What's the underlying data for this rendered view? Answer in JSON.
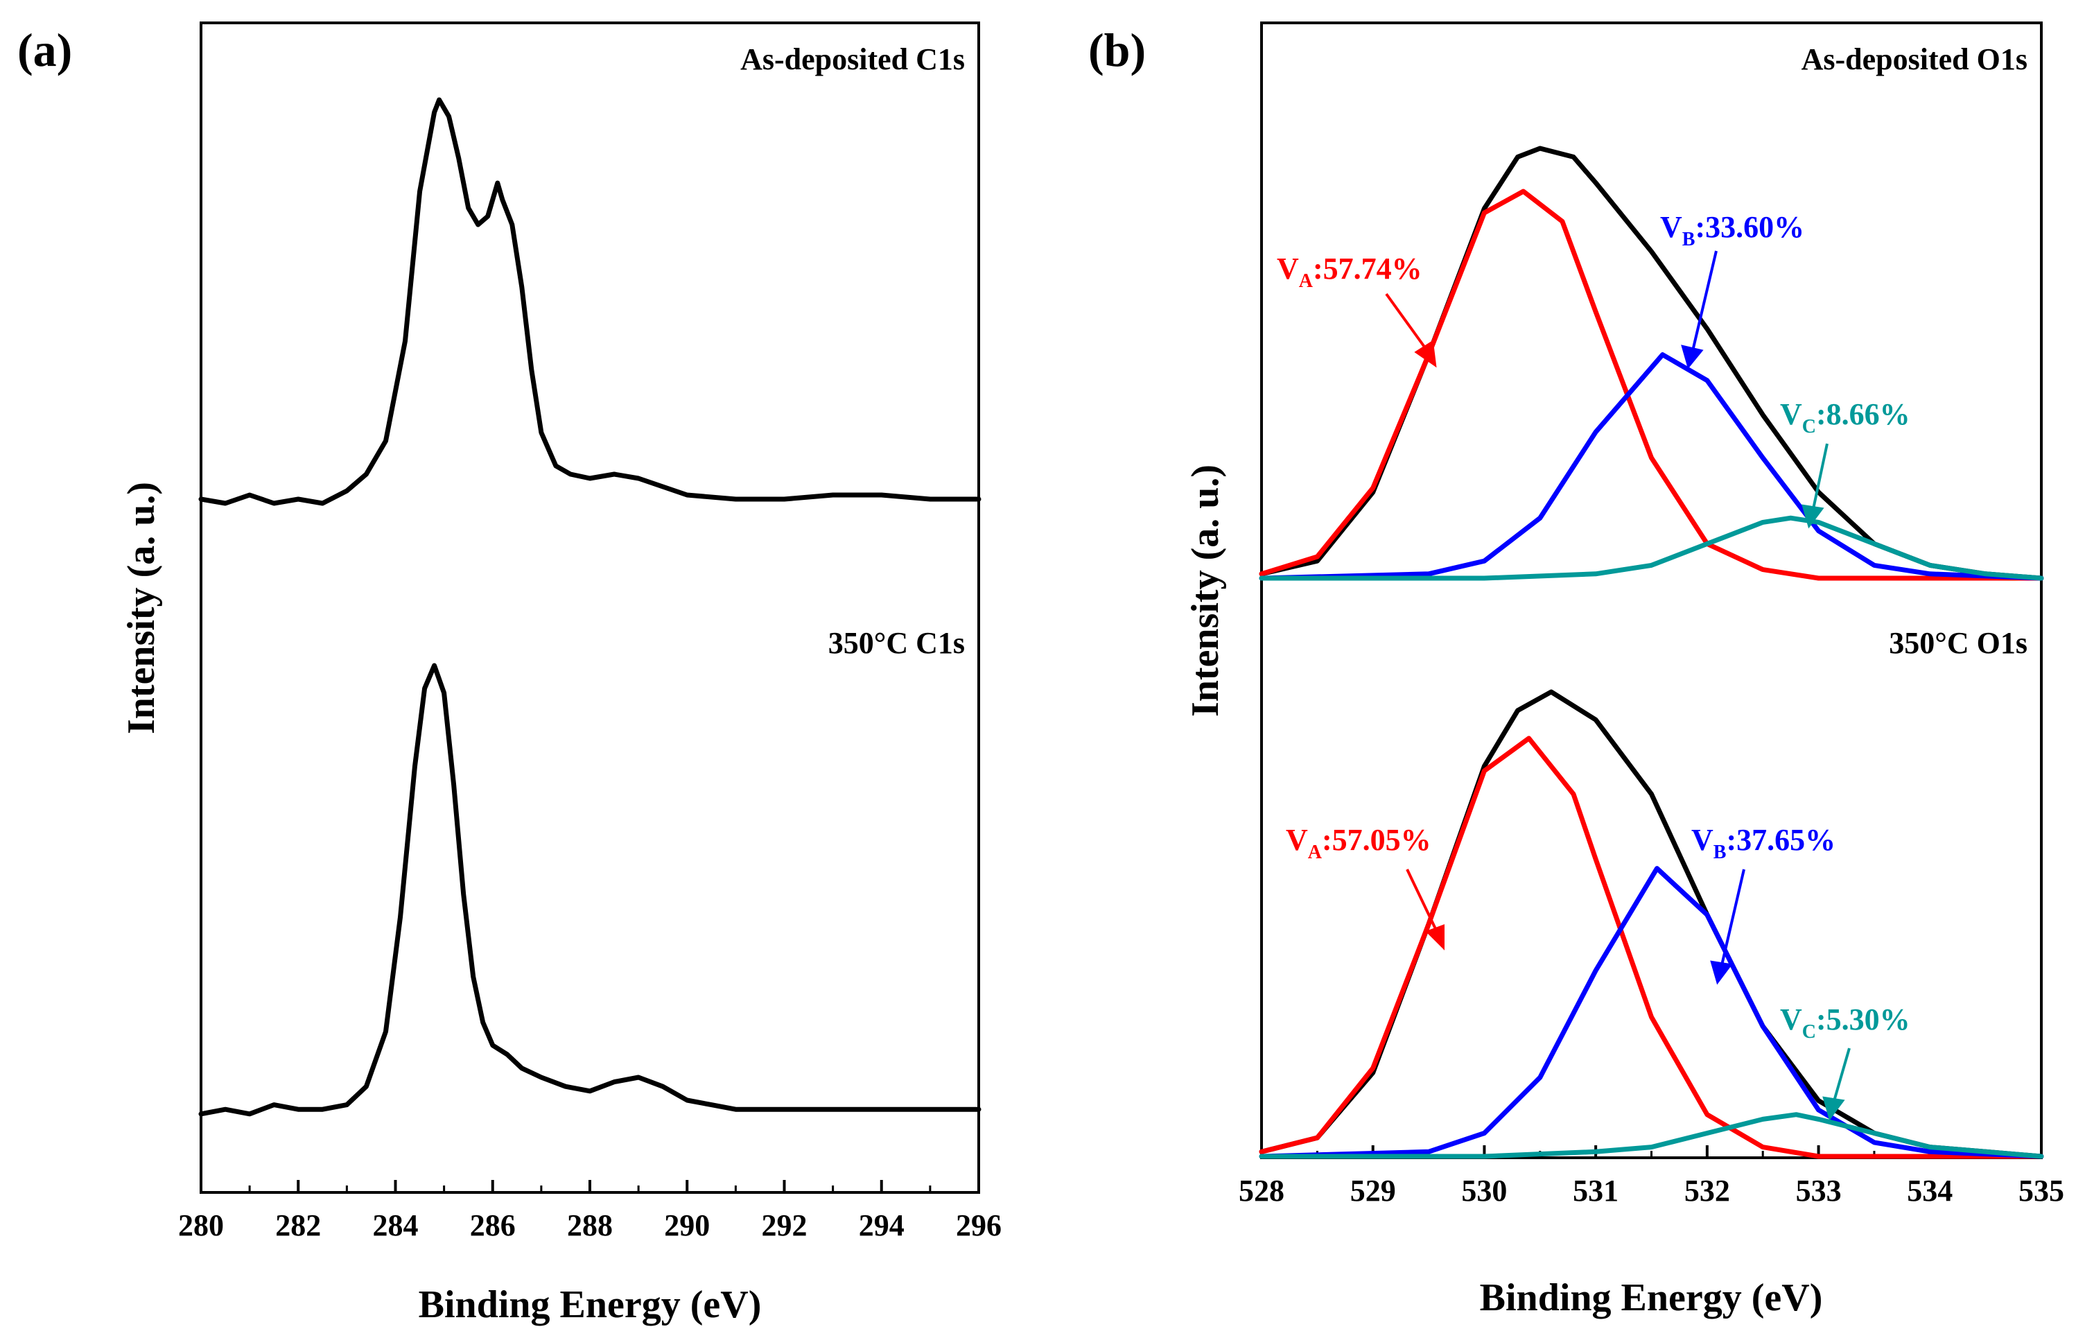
{
  "chart_data": [
    {
      "panel_label": "(a)",
      "type": "line",
      "xlabel": "Binding Energy (eV)",
      "ylabel": "Intensity (a. u.)",
      "xlim": [
        280,
        296
      ],
      "x_ticks": [
        280,
        282,
        284,
        286,
        288,
        290,
        292,
        294,
        296
      ],
      "y_ticks_shown": false,
      "grid": false,
      "stacked_spectra": [
        {
          "annotation": "As-deposited C1s",
          "series": [
            {
              "color": "#000000",
              "x": [
                280.0,
                280.5,
                281.0,
                281.5,
                282.0,
                282.5,
                283.0,
                283.4,
                283.8,
                284.2,
                284.5,
                284.8,
                284.9,
                285.1,
                285.3,
                285.5,
                285.7,
                285.9,
                286.1,
                286.2,
                286.4,
                286.6,
                286.8,
                287.0,
                287.3,
                287.6,
                288.0,
                288.5,
                289.0,
                289.5,
                290.0,
                291.0,
                292.0,
                293.0,
                294.0,
                295.0,
                296.0
              ],
              "y": [
                0.04,
                0.03,
                0.05,
                0.03,
                0.04,
                0.03,
                0.06,
                0.1,
                0.18,
                0.42,
                0.78,
                0.97,
                1.0,
                0.96,
                0.86,
                0.74,
                0.7,
                0.72,
                0.8,
                0.76,
                0.7,
                0.55,
                0.35,
                0.2,
                0.12,
                0.1,
                0.09,
                0.1,
                0.09,
                0.07,
                0.05,
                0.04,
                0.04,
                0.05,
                0.05,
                0.04,
                0.04
              ]
            }
          ]
        },
        {
          "annotation": "350°C C1s",
          "series": [
            {
              "color": "#000000",
              "x": [
                280.0,
                280.5,
                281.0,
                281.5,
                282.0,
                282.5,
                283.0,
                283.4,
                283.8,
                284.1,
                284.4,
                284.6,
                284.8,
                285.0,
                285.2,
                285.4,
                285.6,
                285.8,
                286.0,
                286.3,
                286.6,
                287.0,
                287.5,
                288.0,
                288.5,
                289.0,
                289.5,
                290.0,
                290.5,
                291.0,
                292.0,
                293.0,
                294.0,
                295.0,
                296.0
              ],
              "y": [
                0.02,
                0.03,
                0.02,
                0.04,
                0.03,
                0.03,
                0.04,
                0.08,
                0.2,
                0.45,
                0.78,
                0.95,
                1.0,
                0.94,
                0.74,
                0.5,
                0.32,
                0.22,
                0.17,
                0.15,
                0.12,
                0.1,
                0.08,
                0.07,
                0.09,
                0.1,
                0.08,
                0.05,
                0.04,
                0.03,
                0.03,
                0.03,
                0.03,
                0.03,
                0.03
              ]
            }
          ]
        }
      ]
    },
    {
      "panel_label": "(b)",
      "type": "line",
      "xlabel": "Binding Energy (eV)",
      "ylabel": "Intensity (a. u.)",
      "xlim": [
        528,
        535
      ],
      "x_ticks": [
        528,
        529,
        530,
        531,
        532,
        533,
        534,
        535
      ],
      "y_ticks_shown": false,
      "grid": false,
      "stacked_spectra": [
        {
          "annotation": "As-deposited O1s",
          "series": [
            {
              "color": "#000000",
              "x": [
                528.0,
                528.5,
                529.0,
                529.5,
                530.0,
                530.3,
                530.5,
                530.8,
                531.0,
                531.5,
                532.0,
                532.5,
                533.0,
                533.5,
                534.0,
                534.5,
                535.0
              ],
              "y": [
                0.01,
                0.04,
                0.2,
                0.52,
                0.86,
                0.98,
                1.0,
                0.98,
                0.92,
                0.76,
                0.58,
                0.38,
                0.2,
                0.08,
                0.03,
                0.01,
                0.0
              ]
            },
            {
              "color": "#ff0000",
              "x": [
                528.0,
                528.5,
                529.0,
                529.5,
                530.0,
                530.35,
                530.7,
                531.0,
                531.5,
                532.0,
                532.5,
                533.0,
                535.0
              ],
              "y": [
                0.01,
                0.05,
                0.21,
                0.52,
                0.85,
                0.9,
                0.83,
                0.62,
                0.28,
                0.08,
                0.02,
                0.0,
                0.0
              ]
            },
            {
              "color": "#0000ff",
              "x": [
                528.0,
                529.5,
                530.0,
                530.5,
                531.0,
                531.6,
                532.0,
                532.5,
                533.0,
                533.5,
                534.0,
                535.0
              ],
              "y": [
                0.0,
                0.01,
                0.04,
                0.14,
                0.34,
                0.52,
                0.46,
                0.28,
                0.11,
                0.03,
                0.01,
                0.0
              ]
            },
            {
              "color": "#009999",
              "x": [
                528.0,
                530.0,
                531.0,
                531.5,
                532.0,
                532.5,
                532.75,
                533.0,
                533.5,
                534.0,
                534.5,
                535.0
              ],
              "y": [
                0.0,
                0.0,
                0.01,
                0.03,
                0.08,
                0.13,
                0.14,
                0.13,
                0.08,
                0.03,
                0.01,
                0.0
              ]
            }
          ],
          "peak_labels": [
            {
              "label": "V",
              "subscript": "A",
              "value": ":57.74%",
              "color": "#ff0000"
            },
            {
              "label": "V",
              "subscript": "B",
              "value": ":33.60%",
              "color": "#0000ff"
            },
            {
              "label": "V",
              "subscript": "C",
              "value": ":8.66%",
              "color": "#009999"
            }
          ]
        },
        {
          "annotation": "350°C O1s",
          "series": [
            {
              "color": "#000000",
              "x": [
                528.0,
                528.5,
                529.0,
                529.5,
                530.0,
                530.3,
                530.6,
                531.0,
                531.5,
                532.0,
                532.5,
                533.0,
                533.5,
                534.0,
                534.5,
                535.0
              ],
              "y": [
                0.01,
                0.04,
                0.18,
                0.5,
                0.84,
                0.96,
                1.0,
                0.94,
                0.78,
                0.52,
                0.28,
                0.12,
                0.05,
                0.02,
                0.01,
                0.0
              ]
            },
            {
              "color": "#ff0000",
              "x": [
                528.0,
                528.5,
                529.0,
                529.5,
                530.0,
                530.4,
                530.8,
                531.0,
                531.5,
                532.0,
                532.5,
                533.0,
                535.0
              ],
              "y": [
                0.01,
                0.04,
                0.19,
                0.5,
                0.83,
                0.9,
                0.78,
                0.64,
                0.3,
                0.09,
                0.02,
                0.0,
                0.0
              ]
            },
            {
              "color": "#0000ff",
              "x": [
                528.0,
                529.5,
                530.0,
                530.5,
                531.0,
                531.55,
                532.0,
                532.5,
                533.0,
                533.5,
                534.0,
                535.0
              ],
              "y": [
                0.0,
                0.01,
                0.05,
                0.17,
                0.4,
                0.62,
                0.52,
                0.28,
                0.1,
                0.03,
                0.01,
                0.0
              ]
            },
            {
              "color": "#009999",
              "x": [
                528.0,
                530.0,
                531.0,
                531.5,
                532.0,
                532.5,
                532.8,
                533.0,
                533.5,
                534.0,
                534.5,
                535.0
              ],
              "y": [
                0.0,
                0.0,
                0.01,
                0.02,
                0.05,
                0.08,
                0.09,
                0.08,
                0.05,
                0.02,
                0.01,
                0.0
              ]
            }
          ],
          "peak_labels": [
            {
              "label": "V",
              "subscript": "A",
              "value": ":57.05%",
              "color": "#ff0000"
            },
            {
              "label": "V",
              "subscript": "B",
              "value": ":37.65%",
              "color": "#0000ff"
            },
            {
              "label": "V",
              "subscript": "C",
              "value": ":5.30%",
              "color": "#009999"
            }
          ]
        }
      ]
    }
  ]
}
